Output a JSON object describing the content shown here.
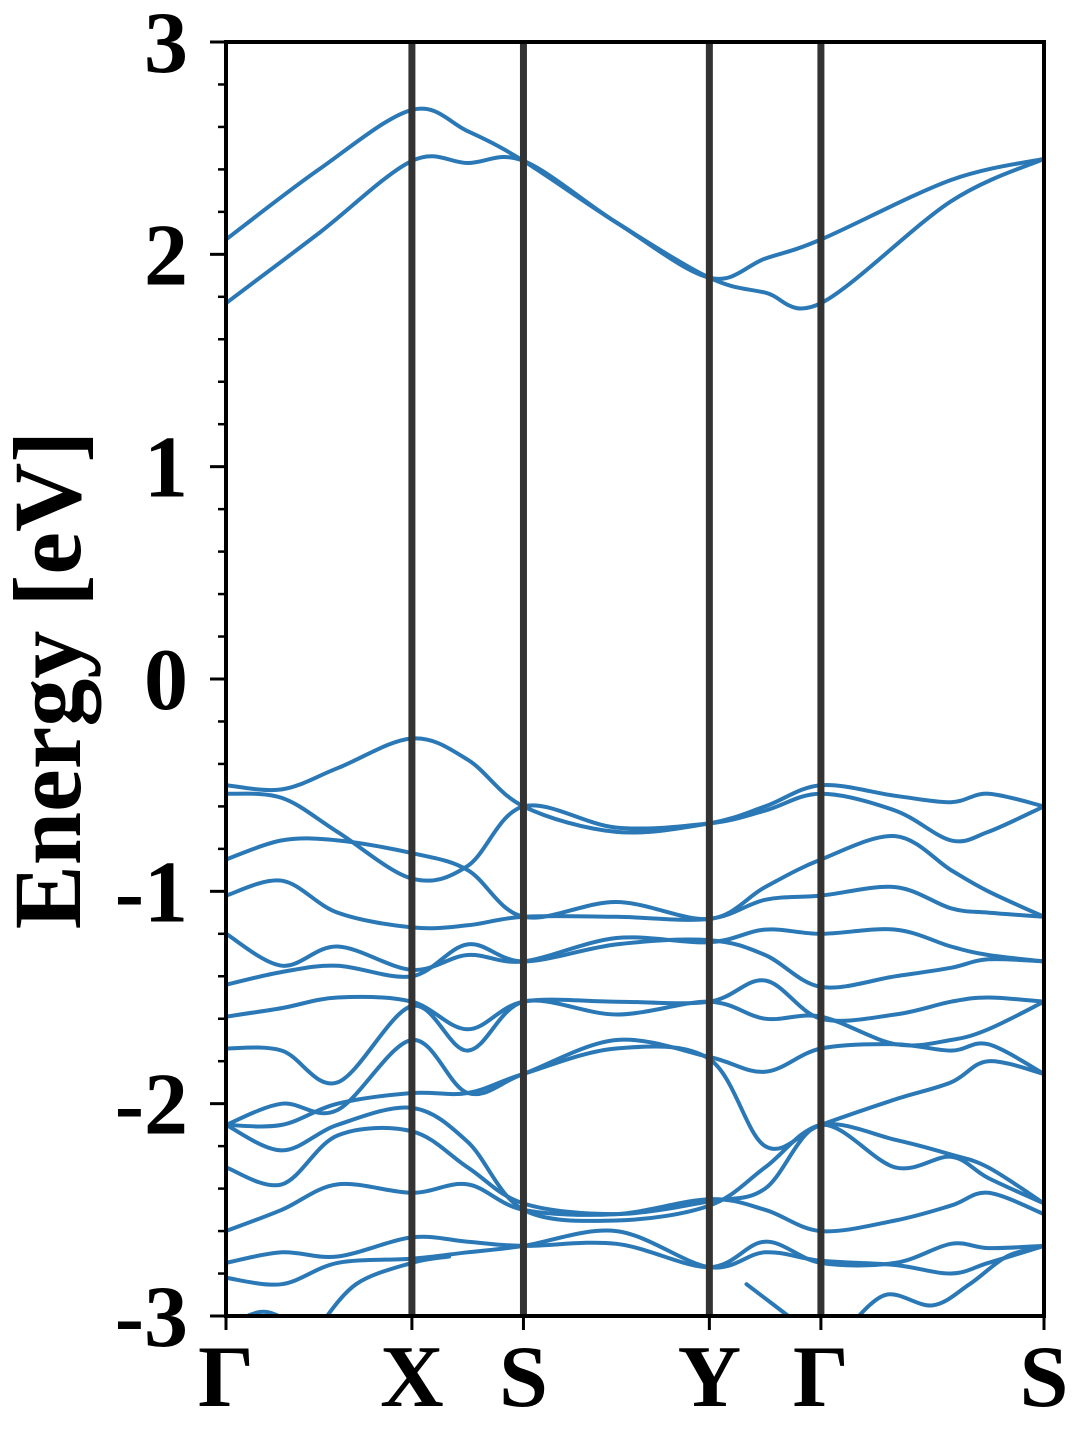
{
  "chart_data": {
    "type": "line",
    "title": "",
    "xlabel": "",
    "ylabel": "Energy [eV]",
    "ylim": [
      -3,
      3
    ],
    "yticks": [
      -3,
      -2,
      -1,
      0,
      1,
      2,
      3
    ],
    "ytick_labels": [
      "-3",
      "-2",
      "-1",
      "0",
      "1",
      "2",
      "3"
    ],
    "ytick_minor_step": 0.2,
    "high_symmetry_points": [
      {
        "label": "Γ",
        "k": 0.0
      },
      {
        "label": "X",
        "k": 1.0
      },
      {
        "label": "S",
        "k": 1.6
      },
      {
        "label": "Y",
        "k": 2.6
      },
      {
        "label": "Γ",
        "k": 3.2
      },
      {
        "label": "S",
        "k": 4.4
      }
    ],
    "xlim": [
      0,
      4.4
    ],
    "grid": false,
    "colors": {
      "bands": "#2a78b5",
      "kpath_lines": "#333333",
      "axes": "#000000"
    },
    "series": [
      {
        "x": [
          0,
          0.5,
          1.0,
          1.3,
          1.6,
          2.1,
          2.6,
          2.9,
          3.2,
          3.9,
          4.4
        ],
        "y": [
          2.07,
          2.4,
          2.68,
          2.58,
          2.44,
          2.15,
          1.89,
          1.98,
          2.07,
          2.35,
          2.45
        ]
      },
      {
        "x": [
          0,
          0.5,
          1.0,
          1.3,
          1.6,
          2.1,
          2.6,
          2.9,
          3.2,
          3.9,
          4.4
        ],
        "y": [
          1.77,
          2.1,
          2.44,
          2.43,
          2.44,
          2.15,
          1.89,
          1.82,
          1.77,
          2.25,
          2.45
        ]
      },
      {
        "x": [
          0,
          0.3,
          0.6,
          1.0,
          1.3,
          1.6,
          2.1,
          2.6,
          2.9,
          3.2,
          3.6,
          3.9,
          4.1,
          4.4
        ],
        "y": [
          -0.5,
          -0.52,
          -0.42,
          -0.28,
          -0.38,
          -0.6,
          -0.72,
          -0.68,
          -0.6,
          -0.5,
          -0.55,
          -0.58,
          -0.54,
          -0.6
        ]
      },
      {
        "x": [
          0,
          0.3,
          0.6,
          1.0,
          1.3,
          1.6,
          2.1,
          2.6,
          2.9,
          3.2,
          3.6,
          3.9,
          4.1,
          4.4
        ],
        "y": [
          -0.54,
          -0.56,
          -0.72,
          -0.94,
          -0.88,
          -0.6,
          -0.7,
          -0.68,
          -0.62,
          -0.54,
          -0.62,
          -0.76,
          -0.72,
          -0.6
        ]
      },
      {
        "x": [
          0,
          0.3,
          0.6,
          1.0,
          1.3,
          1.6,
          2.1,
          2.6,
          2.9,
          3.2,
          3.6,
          3.9,
          4.1,
          4.4
        ],
        "y": [
          -0.85,
          -0.76,
          -0.76,
          -0.82,
          -0.9,
          -1.12,
          -1.05,
          -1.13,
          -0.98,
          -0.85,
          -0.74,
          -0.9,
          -1.0,
          -1.12
        ]
      },
      {
        "x": [
          0,
          0.3,
          0.6,
          1.0,
          1.3,
          1.6,
          2.1,
          2.6,
          2.9,
          3.2,
          3.6,
          3.9,
          4.1,
          4.4
        ],
        "y": [
          -1.02,
          -0.95,
          -1.1,
          -1.17,
          -1.16,
          -1.12,
          -1.12,
          -1.13,
          -1.04,
          -1.02,
          -0.98,
          -1.08,
          -1.1,
          -1.12
        ]
      },
      {
        "x": [
          0,
          0.3,
          0.6,
          1.0,
          1.3,
          1.6,
          2.1,
          2.6,
          2.9,
          3.2,
          3.6,
          3.9,
          4.1,
          4.4
        ],
        "y": [
          -1.2,
          -1.35,
          -1.26,
          -1.37,
          -1.3,
          -1.33,
          -1.22,
          -1.24,
          -1.18,
          -1.2,
          -1.18,
          -1.26,
          -1.3,
          -1.33
        ]
      },
      {
        "x": [
          0,
          0.3,
          0.6,
          1.0,
          1.3,
          1.6,
          2.1,
          2.6,
          2.9,
          3.2,
          3.6,
          3.9,
          4.1,
          4.4
        ],
        "y": [
          -1.44,
          -1.38,
          -1.35,
          -1.4,
          -1.25,
          -1.33,
          -1.25,
          -1.23,
          -1.3,
          -1.45,
          -1.4,
          -1.36,
          -1.32,
          -1.33
        ]
      },
      {
        "x": [
          0,
          0.3,
          0.6,
          1.0,
          1.3,
          1.6,
          2.1,
          2.6,
          2.9,
          3.2,
          3.6,
          3.9,
          4.1,
          4.4
        ],
        "y": [
          -1.59,
          -1.55,
          -1.5,
          -1.52,
          -1.65,
          -1.52,
          -1.52,
          -1.52,
          -1.42,
          -1.6,
          -1.58,
          -1.52,
          -1.5,
          -1.52
        ]
      },
      {
        "x": [
          0,
          0.3,
          0.6,
          1.0,
          1.3,
          1.6,
          2.1,
          2.6,
          2.9,
          3.2,
          3.6,
          3.9,
          4.1,
          4.4
        ],
        "y": [
          -1.74,
          -1.75,
          -1.9,
          -1.54,
          -1.75,
          -1.52,
          -1.58,
          -1.52,
          -1.6,
          -1.59,
          -1.72,
          -1.7,
          -1.65,
          -1.52
        ]
      },
      {
        "x": [
          0,
          0.3,
          0.6,
          1.0,
          1.3,
          1.6,
          2.1,
          2.6,
          2.9,
          3.2,
          3.6,
          3.9,
          4.1,
          4.4
        ],
        "y": [
          -2.1,
          -2.0,
          -2.03,
          -1.7,
          -1.95,
          -1.86,
          -1.7,
          -1.78,
          -1.85,
          -1.74,
          -1.72,
          -1.75,
          -1.72,
          -1.86
        ]
      },
      {
        "x": [
          0,
          0.3,
          0.6,
          1.0,
          1.3,
          1.6,
          2.1,
          2.6,
          2.9,
          3.2,
          3.6,
          3.9,
          4.1,
          4.4
        ],
        "y": [
          -2.1,
          -2.1,
          -2.0,
          -1.95,
          -1.95,
          -1.86,
          -1.74,
          -1.79,
          -2.2,
          -2.1,
          -1.98,
          -1.9,
          -1.8,
          -1.86
        ]
      },
      {
        "x": [
          0,
          0.3,
          0.6,
          1.0,
          1.3,
          1.6,
          2.1,
          2.6,
          2.9,
          3.2,
          3.6,
          3.9,
          4.1,
          4.4
        ],
        "y": [
          -2.1,
          -2.22,
          -2.1,
          -2.02,
          -2.18,
          -2.5,
          -2.55,
          -2.48,
          -2.3,
          -2.1,
          -2.17,
          -2.24,
          -2.3,
          -2.47
        ]
      },
      {
        "x": [
          0,
          0.3,
          0.6,
          1.0,
          1.3,
          1.6,
          2.1,
          2.6,
          2.9,
          3.2,
          3.6,
          3.9,
          4.1,
          4.4
        ],
        "y": [
          -2.3,
          -2.38,
          -2.15,
          -2.13,
          -2.3,
          -2.47,
          -2.52,
          -2.46,
          -2.4,
          -2.1,
          -2.3,
          -2.25,
          -2.35,
          -2.47
        ]
      },
      {
        "x": [
          0,
          0.3,
          0.6,
          1.0,
          1.3,
          1.6,
          2.1,
          2.6,
          2.9,
          3.2,
          3.6,
          3.9,
          4.1,
          4.4
        ],
        "y": [
          -2.6,
          -2.5,
          -2.38,
          -2.42,
          -2.38,
          -2.5,
          -2.52,
          -2.45,
          -2.5,
          -2.6,
          -2.55,
          -2.48,
          -2.42,
          -2.52
        ]
      },
      {
        "x": [
          0,
          0.3,
          0.6,
          1.0,
          1.3,
          1.6,
          2.1,
          2.6,
          2.9,
          3.2,
          3.6,
          3.9,
          4.1,
          4.4
        ],
        "y": [
          -2.75,
          -2.7,
          -2.72,
          -2.63,
          -2.65,
          -2.67,
          -2.66,
          -2.77,
          -2.65,
          -2.75,
          -2.75,
          -2.66,
          -2.68,
          -2.67
        ]
      },
      {
        "x": [
          0,
          0.3,
          0.6,
          1.0,
          1.3,
          1.6,
          2.1,
          2.6,
          2.9,
          3.2,
          3.6,
          3.9,
          4.1,
          4.4
        ],
        "y": [
          -2.82,
          -2.85,
          -2.75,
          -2.73,
          -2.7,
          -2.67,
          -2.6,
          -2.77,
          -2.7,
          -2.74,
          -2.76,
          -2.8,
          -2.75,
          -2.67
        ]
      },
      {
        "x": [
          0,
          0.2,
          0.4,
          0.6
        ],
        "y": [
          -3.05,
          -2.98,
          -3.05,
          -3.1
        ]
      },
      {
        "x": [
          0.5,
          0.7,
          1.0,
          1.2
        ],
        "y": [
          -3.05,
          -2.85,
          -2.75,
          -2.72
        ]
      },
      {
        "x": [
          2.8,
          2.95,
          3.1
        ],
        "y": [
          -2.85,
          -2.95,
          -3.05
        ]
      },
      {
        "x": [
          3.35,
          3.55,
          3.8,
          4.0,
          4.2,
          4.4
        ],
        "y": [
          -3.05,
          -2.9,
          -2.95,
          -2.85,
          -2.72,
          -2.67
        ]
      }
    ]
  }
}
